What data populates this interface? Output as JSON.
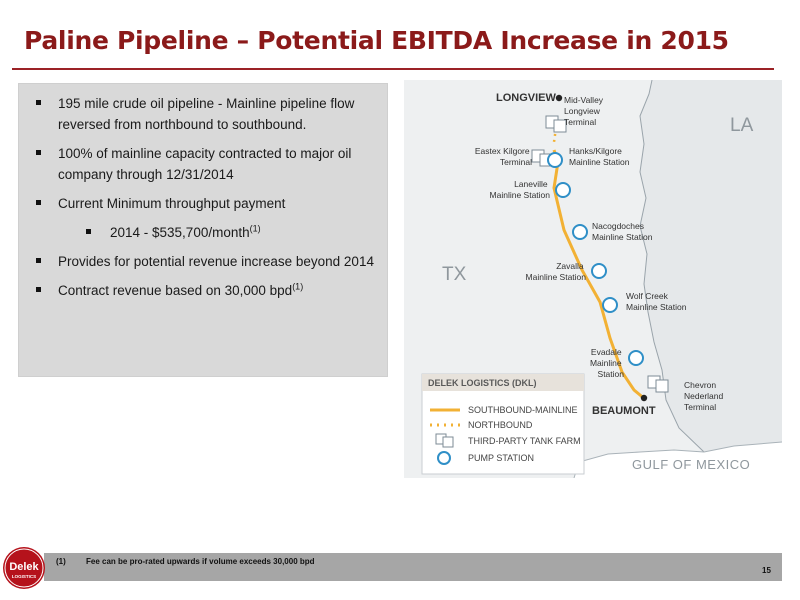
{
  "slide": {
    "title": "Paline Pipeline – Potential EBITDA Increase in 2015",
    "page_number": "15"
  },
  "bullets": [
    {
      "level": 1,
      "text": "195 mile crude oil pipeline - Mainline pipeline flow reversed from northbound to southbound.",
      "sup": ""
    },
    {
      "level": 1,
      "text": "100% of mainline capacity contracted to major oil company through 12/31/2014",
      "sup": ""
    },
    {
      "level": 1,
      "text": "Current Minimum throughput payment",
      "sup": ""
    },
    {
      "level": 2,
      "text": "2014 - $535,700/month",
      "sup": "(1)"
    },
    {
      "level": 1,
      "text": "Provides for potential revenue increase beyond 2014",
      "sup": ""
    },
    {
      "level": 1,
      "text": "Contract revenue based on 30,000 bpd",
      "sup": "(1)"
    }
  ],
  "map": {
    "state_labels": {
      "tx": "TX",
      "la": "LA",
      "gulf": "GULF OF MEXICO"
    },
    "cities": {
      "north": "LONGVIEW",
      "south": "BEAUMONT"
    },
    "terminals": {
      "mid_valley": [
        "Mid-Valley",
        "Longview",
        "Terminal"
      ],
      "eastex": [
        "Eastex Kilgore",
        "Terminal"
      ],
      "chevron": [
        "Chevron",
        "Nederland",
        "Terminal"
      ]
    },
    "stations": {
      "hanks": [
        "Hanks/Kilgore",
        "Mainline Station"
      ],
      "laneville": [
        "Laneville",
        "Mainline Station"
      ],
      "nacogdoches": [
        "Nacogdoches",
        "Mainline Station"
      ],
      "zavalla": [
        "Zavalla",
        "Mainline Station"
      ],
      "wolf_creek": [
        "Wolf Creek",
        "Mainline Station"
      ],
      "evadale": [
        "Evadale",
        "Mainline",
        "Station"
      ]
    },
    "legend": {
      "title": "DELEK LOGISTICS (DKL)",
      "items": [
        "SOUTHBOUND-MAINLINE",
        "NORTHBOUND",
        "THIRD-PARTY TANK FARM",
        "PUMP STATION"
      ]
    },
    "colors": {
      "pipeline": "#f2b134",
      "station": "#2f8fc7",
      "land_tx": "#eef0f1",
      "land_la": "#e8ebed",
      "label": "#333333"
    }
  },
  "footnote": {
    "number": "(1)",
    "text": "Fee can be pro-rated upwards if volume exceeds 30,000 bpd"
  },
  "logo": {
    "brand": "Delek",
    "sub": "LOGISTICS",
    "color": "#b5121b"
  }
}
